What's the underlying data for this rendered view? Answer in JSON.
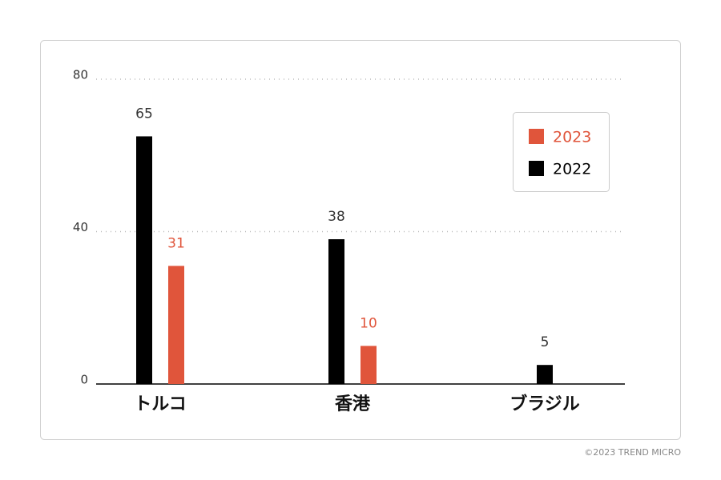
{
  "chart_data": {
    "type": "bar",
    "categories": [
      "トルコ",
      "香港",
      "ブラジル"
    ],
    "series": [
      {
        "name": "2022",
        "color": "#000000",
        "values": [
          65,
          38,
          5
        ]
      },
      {
        "name": "2023",
        "color": "#e0553b",
        "values": [
          31,
          10,
          null
        ]
      }
    ],
    "ylim": [
      0,
      80
    ],
    "yticks": [
      0,
      40,
      80
    ],
    "grid": true,
    "legend": "top-right",
    "footer": "©2023 TREND MICRO"
  }
}
